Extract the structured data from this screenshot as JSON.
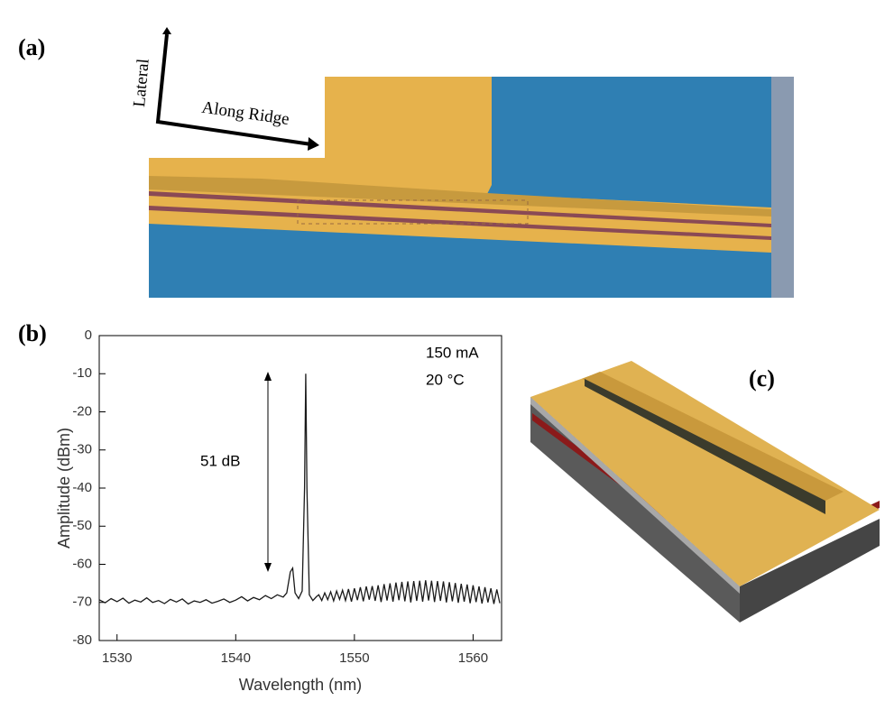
{
  "labels": {
    "a": "(a)",
    "b": "(b)",
    "c": "(c)"
  },
  "axis_arrows": {
    "lateral": "Lateral",
    "along": "Along Ridge"
  },
  "chart_data": {
    "type": "line",
    "xlabel": "Wavelength (nm)",
    "ylabel": "Amplitude (dBm)",
    "annotations": [
      "150 mA",
      "20 °C",
      "51 dB"
    ],
    "xlim": [
      1528.5,
      1562.4
    ],
    "ylim": [
      -80,
      0
    ],
    "xticks": [
      1530,
      1540,
      1550,
      1560
    ],
    "yticks": [
      0,
      -10,
      -20,
      -30,
      -40,
      -50,
      -60,
      -70,
      -80
    ],
    "x": [
      1528.5,
      1529,
      1529.5,
      1530,
      1530.5,
      1531,
      1531.5,
      1532,
      1532.5,
      1533,
      1533.5,
      1534,
      1534.5,
      1535,
      1535.5,
      1536,
      1536.5,
      1537,
      1537.5,
      1538,
      1538.5,
      1539,
      1539.5,
      1540,
      1540.5,
      1541,
      1541.5,
      1542,
      1542.5,
      1543,
      1543.5,
      1544,
      1544.3,
      1544.6,
      1544.8,
      1545,
      1545.3,
      1545.6,
      1545.8,
      1545.9,
      1546,
      1546.2,
      1546.5,
      1546.8,
      1547,
      1547.25,
      1547.5,
      1547.75,
      1548,
      1548.25,
      1548.5,
      1548.75,
      1549,
      1549.25,
      1549.5,
      1549.75,
      1550,
      1550.25,
      1550.5,
      1550.75,
      1551,
      1551.25,
      1551.5,
      1551.75,
      1552,
      1552.25,
      1552.5,
      1552.75,
      1553,
      1553.25,
      1553.5,
      1553.75,
      1554,
      1554.25,
      1554.5,
      1554.75,
      1555,
      1555.25,
      1555.5,
      1555.75,
      1556,
      1556.25,
      1556.5,
      1556.75,
      1557,
      1557.25,
      1557.5,
      1557.75,
      1558,
      1558.25,
      1558.5,
      1558.75,
      1559,
      1559.25,
      1559.5,
      1559.75,
      1560,
      1560.25,
      1560.5,
      1560.75,
      1561,
      1561.25,
      1561.5,
      1561.75,
      1562,
      1562.25
    ],
    "series": [
      {
        "color": "#1a1a1a",
        "values": [
          -69.3,
          -70.1,
          -69.0,
          -69.8,
          -68.9,
          -70.2,
          -69.4,
          -69.9,
          -68.8,
          -70.0,
          -69.5,
          -70.3,
          -69.2,
          -69.9,
          -69.1,
          -70.4,
          -69.6,
          -70.0,
          -69.3,
          -70.2,
          -69.7,
          -69.1,
          -70.0,
          -69.4,
          -68.5,
          -69.6,
          -68.7,
          -69.3,
          -68.2,
          -69.0,
          -68.0,
          -68.6,
          -67.5,
          -62,
          -61,
          -67.5,
          -69,
          -67,
          -40,
          -10,
          -40,
          -68,
          -69.5,
          -68.5,
          -68.0,
          -69.5,
          -67.5,
          -69.3,
          -67.2,
          -69.6,
          -67.0,
          -69.2,
          -66.8,
          -69.5,
          -66.5,
          -69.8,
          -66.3,
          -69.4,
          -66.0,
          -69.7,
          -65.8,
          -69.3,
          -65.7,
          -69.6,
          -65.5,
          -69.9,
          -65.2,
          -69.5,
          -65.0,
          -69.8,
          -64.8,
          -69.4,
          -64.6,
          -69.7,
          -64.5,
          -70.0,
          -64.4,
          -69.6,
          -64.3,
          -69.8,
          -64.2,
          -69.5,
          -64.3,
          -69.9,
          -64.4,
          -69.6,
          -64.5,
          -70.0,
          -64.7,
          -69.7,
          -64.9,
          -70.1,
          -65.1,
          -69.8,
          -65.3,
          -70.2,
          -65.5,
          -69.9,
          -65.8,
          -70.3,
          -66.0,
          -70.0,
          -66.3,
          -70.4,
          -66.6,
          -70.2
        ]
      }
    ]
  }
}
